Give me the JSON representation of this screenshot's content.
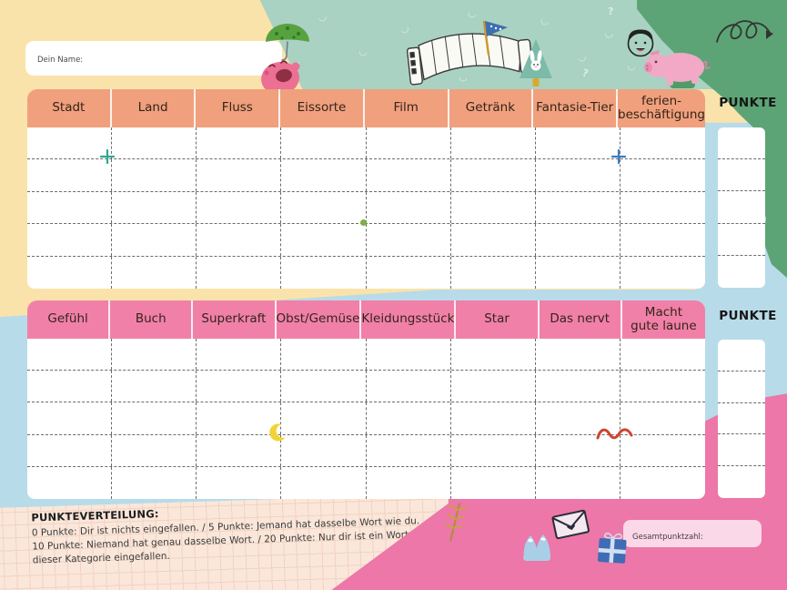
{
  "page": {
    "name_label": "Dein Name:",
    "points_label": "PUNKTE",
    "total_label": "Gesamtpunktzahl:"
  },
  "table1": {
    "headers": [
      "Stadt",
      "Land",
      "Fluss",
      "Eissorte",
      "Film",
      "Getränk",
      "Fantasie-Tier",
      "ferien-\nbeschäftigung"
    ],
    "row_count": 5
  },
  "table2": {
    "headers": [
      "Gefühl",
      "Buch",
      "Superkraft",
      "Obst/Gemüse",
      "Kleidungsstück",
      "Star",
      "Das nervt",
      "Macht\ngute laune"
    ],
    "row_count": 5
  },
  "scoring": {
    "title": "PUNKTEVERTEILUNG:",
    "line1": "0 Punkte: Dir ist nichts eingefallen. / 5 Punkte: Jemand hat dasselbe Wort wie du.",
    "line2": "10 Punkte: Niemand hat genau dasselbe Wort. / 20 Punkte: Nur dir ist ein Wort in dieser Kategorie eingefallen."
  },
  "colors": {
    "yellow": "#FAE3AB",
    "teal": "#A9D2C3",
    "green": "#5CA475",
    "blue": "#B7DBE9",
    "pink": "#EC77A8",
    "salmon_header": "#F0A07D",
    "pink_header": "#F180A8",
    "paper": "#FAE7DA",
    "paper_grid": "#F2D2C2",
    "total_box": "#FBD8E8"
  },
  "icons": [
    "umbrella-icon",
    "monster-icon",
    "accordion-icon",
    "pennant-icon",
    "tree-bunny-icon",
    "boy-face-icon",
    "pig-icon",
    "scribble-arrow-icon",
    "sparkle-icon",
    "dot-icon",
    "moon-icon",
    "squiggle-icon",
    "twig-icon",
    "mountain-icon",
    "envelope-icon",
    "gift-icon"
  ]
}
